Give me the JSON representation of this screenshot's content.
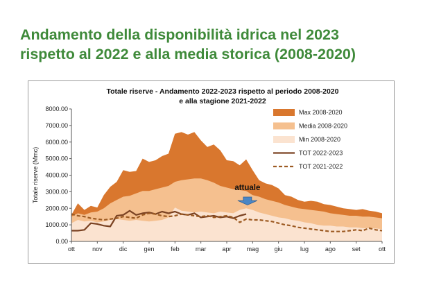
{
  "slide": {
    "title_line1": "Andamento della disponibilità idrica nel 2023",
    "title_line2": "rispetto al 2022 e alla media storica (2008-2020)"
  },
  "chart_data": {
    "type": "area",
    "title_line1": "Totale riserve - Andamento 2022-2023 rispetto al periodo 2008-2020",
    "title_line2": "e alla stagione 2021-2022",
    "ylabel": "Totale riserve (Mmc)",
    "xlabel": "",
    "ylim": [
      0,
      8000
    ],
    "yticks": [
      "0.00",
      "1000.00",
      "2000.00",
      "3000.00",
      "4000.00",
      "5000.00",
      "6000.00",
      "7000.00",
      "8000.00"
    ],
    "xlim": [
      0,
      12
    ],
    "x_tick_labels": [
      "ott",
      "nov",
      "dic",
      "gen",
      "feb",
      "mar",
      "apr",
      "mag",
      "giu",
      "lug",
      "ago",
      "set",
      "ott"
    ],
    "grid": false,
    "legend_position": "right",
    "colors": {
      "max": "#d9772e",
      "media": "#f5c08f",
      "min": "#fbe3d0",
      "tot_2022_2023": "#7a4222",
      "tot_2021_2022": "#9c5a22",
      "arrow": "#4a86c5"
    },
    "series": [
      {
        "name": "Max 2008-2020",
        "style": "area",
        "x": [
          0,
          0.25,
          0.5,
          0.75,
          1,
          1.25,
          1.5,
          1.75,
          2,
          2.25,
          2.5,
          2.75,
          3,
          3.25,
          3.5,
          3.75,
          4,
          4.25,
          4.5,
          4.75,
          5,
          5.25,
          5.5,
          5.75,
          6,
          6.25,
          6.5,
          6.75,
          7,
          7.25,
          7.5,
          7.75,
          8,
          8.25,
          8.5,
          8.75,
          9,
          9.25,
          9.5,
          9.75,
          10,
          10.25,
          10.5,
          10.75,
          11,
          11.25,
          11.5,
          11.75,
          12
        ],
        "values": [
          1600,
          2300,
          1900,
          2150,
          2050,
          2800,
          3300,
          3600,
          4300,
          4200,
          4250,
          5000,
          4800,
          4900,
          5150,
          5300,
          6500,
          6600,
          6450,
          6600,
          6100,
          5700,
          5850,
          5500,
          4900,
          4850,
          4600,
          4950,
          4300,
          3700,
          3500,
          3400,
          3200,
          2800,
          2700,
          2500,
          2400,
          2450,
          2400,
          2250,
          2200,
          2100,
          2000,
          1950,
          1900,
          1950,
          1850,
          1800,
          1700
        ]
      },
      {
        "name": "Media 2008-2020",
        "style": "area",
        "x": [
          0,
          0.25,
          0.5,
          0.75,
          1,
          1.25,
          1.5,
          1.75,
          2,
          2.25,
          2.5,
          2.75,
          3,
          3.25,
          3.5,
          3.75,
          4,
          4.25,
          4.5,
          4.75,
          5,
          5.25,
          5.5,
          5.75,
          6,
          6.25,
          6.5,
          6.75,
          7,
          7.25,
          7.5,
          7.75,
          8,
          8.25,
          8.5,
          8.75,
          9,
          9.25,
          9.5,
          9.75,
          10,
          10.25,
          10.5,
          10.75,
          11,
          11.25,
          11.5,
          11.75,
          12
        ],
        "values": [
          1500,
          1700,
          1600,
          1750,
          1800,
          2000,
          2300,
          2500,
          2700,
          2750,
          2900,
          3050,
          3050,
          3150,
          3250,
          3350,
          3600,
          3700,
          3750,
          3800,
          3800,
          3700,
          3550,
          3350,
          3250,
          3150,
          3100,
          3050,
          2800,
          2700,
          2550,
          2450,
          2350,
          2200,
          2100,
          2000,
          1950,
          1900,
          1850,
          1800,
          1700,
          1650,
          1600,
          1550,
          1550,
          1500,
          1500,
          1450,
          1400
        ]
      },
      {
        "name": "Min 2008-2020",
        "style": "area",
        "x": [
          0,
          0.25,
          0.5,
          0.75,
          1,
          1.25,
          1.5,
          1.75,
          2,
          2.25,
          2.5,
          2.75,
          3,
          3.25,
          3.5,
          3.75,
          4,
          4.25,
          4.5,
          4.75,
          5,
          5.25,
          5.5,
          5.75,
          6,
          6.25,
          6.5,
          6.75,
          7,
          7.25,
          7.5,
          7.75,
          8,
          8.25,
          8.5,
          8.75,
          9,
          9.25,
          9.5,
          9.75,
          10,
          10.25,
          10.5,
          10.75,
          11,
          11.25,
          11.5,
          11.75,
          12
        ],
        "values": [
          1100,
          1300,
          1200,
          1250,
          1150,
          1200,
          1300,
          1350,
          1300,
          1250,
          1300,
          1250,
          1200,
          1250,
          1300,
          1450,
          2050,
          1850,
          1800,
          1750,
          1800,
          1750,
          1700,
          1800,
          1750,
          1700,
          1900,
          2000,
          1900,
          1750,
          1650,
          1550,
          1450,
          1400,
          1300,
          1250,
          1150,
          1100,
          1000,
          950,
          950,
          900,
          900,
          850,
          850,
          800,
          800,
          780,
          750
        ]
      },
      {
        "name": "TOT 2022-2023",
        "style": "solid",
        "x": [
          0,
          0.25,
          0.5,
          0.75,
          1,
          1.25,
          1.5,
          1.75,
          2,
          2.25,
          2.5,
          2.75,
          3,
          3.25,
          3.5,
          3.75,
          4,
          4.25,
          4.5,
          4.75,
          5,
          5.25,
          5.5,
          5.75,
          6,
          6.25,
          6.5,
          6.75
        ],
        "values": [
          650,
          650,
          700,
          1100,
          1050,
          950,
          900,
          1550,
          1600,
          1850,
          1600,
          1700,
          1750,
          1650,
          1800,
          1700,
          1800,
          1650,
          1600,
          1700,
          1450,
          1500,
          1550,
          1450,
          1500,
          1400,
          1550,
          1650
        ]
      },
      {
        "name": "TOT 2021-2022",
        "style": "dashed",
        "x": [
          0,
          0.25,
          0.5,
          0.75,
          1,
          1.25,
          1.5,
          1.75,
          2,
          2.25,
          2.5,
          2.75,
          3,
          3.25,
          3.5,
          3.75,
          4,
          4.25,
          4.5,
          4.75,
          5,
          5.25,
          5.5,
          5.75,
          6,
          6.25,
          6.5,
          6.75,
          7,
          7.25,
          7.5,
          7.75,
          8,
          8.25,
          8.5,
          8.75,
          9,
          9.25,
          9.5,
          9.75,
          10,
          10.25,
          10.5,
          10.75,
          11,
          11.25,
          11.5,
          11.75,
          12
        ],
        "values": [
          1650,
          1550,
          1500,
          1400,
          1350,
          1300,
          1350,
          1400,
          1500,
          1450,
          1400,
          1600,
          1700,
          1650,
          1550,
          1500,
          1550,
          1650,
          1600,
          1550,
          1500,
          1550,
          1450,
          1500,
          1550,
          1450,
          1150,
          1350,
          1300,
          1300,
          1250,
          1200,
          1100,
          1000,
          950,
          850,
          800,
          750,
          700,
          650,
          600,
          600,
          600,
          650,
          700,
          650,
          800,
          700,
          650
        ]
      }
    ],
    "annotations": [
      {
        "label": "attuale",
        "x": 6.8,
        "y": 3100,
        "arrow_to": 2200
      }
    ]
  }
}
